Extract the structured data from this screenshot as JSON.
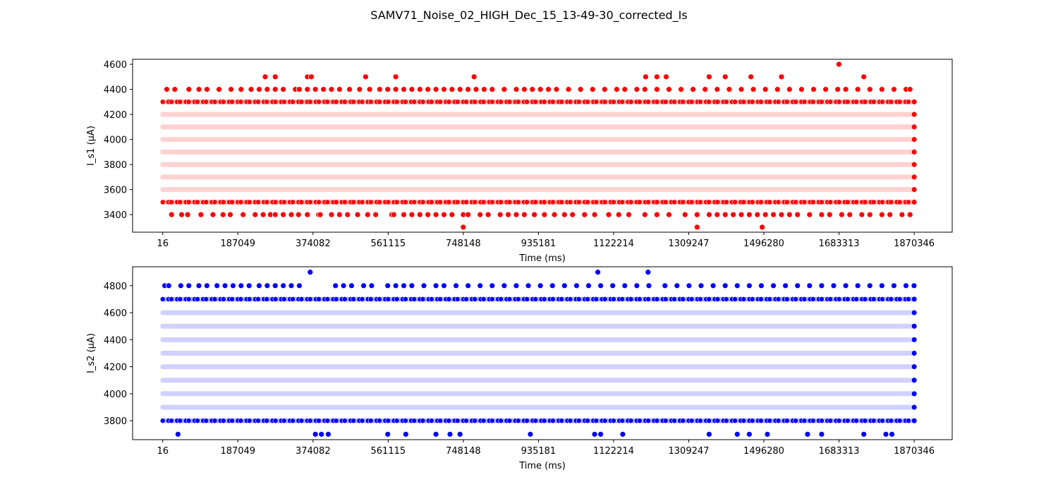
{
  "figure_title": "SAMV71_Noise_02_HIGH_Dec_15_13-49-30_corrected_Is",
  "chart_data": [
    {
      "type": "scatter",
      "xlabel": "Time (ms)",
      "ylabel": "I_s1 (µA)",
      "color": "#ff0000",
      "xlim": [
        -75000,
        1965000
      ],
      "ylim": [
        3260,
        4640
      ],
      "xticks": [
        16,
        187049,
        374082,
        561115,
        748148,
        935181,
        1122214,
        1309247,
        1496280,
        1683313,
        1870346
      ],
      "yticks": [
        3400,
        3600,
        3800,
        4000,
        4200,
        4400,
        4600
      ],
      "band_levels": [
        3500,
        3600,
        3700,
        3800,
        3900,
        4000,
        4100,
        4200,
        4300
      ],
      "dense_levels": [
        3500,
        4300
      ],
      "sparse_levels": [
        {
          "y": 3400,
          "x": [
            22000,
            47000,
            62000,
            95000,
            125000,
            150000,
            168000,
            200000,
            230000,
            250000,
            268000,
            280000,
            300000,
            320000,
            338000,
            360000,
            388000,
            392000,
            420000,
            440000,
            460000,
            485000,
            510000,
            530000,
            570000,
            575000,
            600000,
            620000,
            640000,
            660000,
            680000,
            700000,
            720000,
            748000,
            760000,
            790000,
            810000,
            840000,
            860000,
            880000,
            900000,
            925000,
            950000,
            975000,
            1000000,
            1020000,
            1050000,
            1075000,
            1110000,
            1135000,
            1160000,
            1200000,
            1230000,
            1260000,
            1300000,
            1330000,
            1360000,
            1380000,
            1400000,
            1420000,
            1440000,
            1460000,
            1480000,
            1500000,
            1520000,
            1540000,
            1560000,
            1580000,
            1610000,
            1640000,
            1660000,
            1690000,
            1710000,
            1740000,
            1760000,
            1790000,
            1810000,
            1840000,
            1860000
          ]
        },
        {
          "y": 4400,
          "x": [
            10000,
            30000,
            65000,
            90000,
            110000,
            140000,
            170000,
            195000,
            220000,
            240000,
            260000,
            280000,
            300000,
            330000,
            340000,
            360000,
            380000,
            400000,
            420000,
            440000,
            465000,
            490000,
            515000,
            540000,
            560000,
            580000,
            600000,
            620000,
            640000,
            660000,
            680000,
            700000,
            720000,
            740000,
            760000,
            780000,
            800000,
            820000,
            850000,
            880000,
            900000,
            920000,
            940000,
            960000,
            980000,
            1010000,
            1040000,
            1070000,
            1100000,
            1130000,
            1150000,
            1180000,
            1200000,
            1230000,
            1260000,
            1290000,
            1320000,
            1350000,
            1380000,
            1410000,
            1440000,
            1470000,
            1500000,
            1530000,
            1560000,
            1590000,
            1620000,
            1650000,
            1680000,
            1700000,
            1730000,
            1760000,
            1790000,
            1820000,
            1850000,
            1860000
          ]
        },
        {
          "y": 4500,
          "x": [
            255000,
            280000,
            360000,
            370000,
            505000,
            580000,
            775000,
            1202000,
            1230000,
            1253000,
            1360000,
            1400000,
            1464000,
            1540000,
            1745000
          ]
        },
        {
          "y": 3300,
          "x": [
            748000,
            1330000,
            1492000
          ]
        },
        {
          "y": 4600,
          "x": [
            1683000
          ]
        }
      ],
      "right_edge_x": 1870346,
      "right_edge_levels": [
        3500,
        3600,
        3700,
        3800,
        3900,
        4000,
        4100,
        4200,
        4300
      ]
    },
    {
      "type": "scatter",
      "xlabel": "Time (ms)",
      "ylabel": "I_s2 (µA)",
      "color": "#0000ff",
      "xlim": [
        -75000,
        1965000
      ],
      "ylim": [
        3660,
        4940
      ],
      "xticks": [
        16,
        187049,
        374082,
        561115,
        748148,
        935181,
        1122214,
        1309247,
        1496280,
        1683313,
        1870346
      ],
      "yticks": [
        3800,
        4000,
        4200,
        4400,
        4600,
        4800
      ],
      "band_levels": [
        3800,
        3900,
        4000,
        4100,
        4200,
        4300,
        4400,
        4500,
        4600,
        4700
      ],
      "dense_levels": [
        3800,
        4700
      ],
      "sparse_levels": [
        {
          "y": 4800,
          "x": [
            5000,
            15000,
            45000,
            65000,
            90000,
            110000,
            135000,
            155000,
            175000,
            195000,
            215000,
            240000,
            260000,
            280000,
            300000,
            320000,
            340000,
            430000,
            450000,
            470000,
            500000,
            520000,
            560000,
            580000,
            600000,
            620000,
            650000,
            680000,
            700000,
            730000,
            760000,
            790000,
            820000,
            850000,
            880000,
            910000,
            940000,
            970000,
            1000000,
            1030000,
            1060000,
            1090000,
            1120000,
            1150000,
            1180000,
            1210000,
            1250000,
            1280000,
            1310000,
            1340000,
            1370000,
            1400000,
            1430000,
            1460000,
            1490000,
            1520000,
            1550000,
            1580000,
            1610000,
            1640000,
            1670000,
            1700000,
            1730000,
            1760000,
            1790000,
            1820000,
            1850000,
            1870000
          ]
        },
        {
          "y": 3700,
          "x": [
            38000,
            380000,
            395000,
            412000,
            560000,
            605000,
            680000,
            715000,
            740000,
            915000,
            1075000,
            1090000,
            1145000,
            1360000,
            1430000,
            1460000,
            1505000,
            1605000,
            1640000,
            1745000,
            1800000,
            1815000
          ]
        },
        {
          "y": 4900,
          "x": [
            367000,
            1083000,
            1208000
          ]
        }
      ],
      "right_edge_x": 1870346,
      "right_edge_levels": [
        3800,
        3900,
        4000,
        4100,
        4200,
        4300,
        4400,
        4500,
        4600,
        4700
      ]
    }
  ]
}
